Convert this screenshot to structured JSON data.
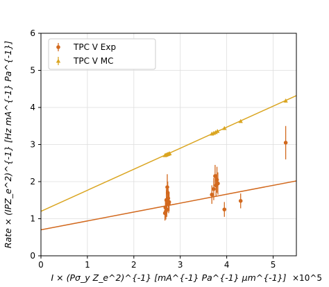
{
  "colors": {
    "exp": "#d2691e",
    "mc": "#daa520",
    "grid": "#dddddd",
    "axis": "#000000"
  },
  "chart_data": {
    "type": "scatter",
    "xlabel": "I × (Pσ_y Z_e^2)^{-1} [mA^{-1} Pa^{-1} μm^{-1}]",
    "ylabel": "Rate × (IPZ_e^2)^{-1} [Hz mA^{-1} Pa^{-1}]",
    "x_multiplier": "×10^5",
    "xlim": [
      0,
      550000
    ],
    "ylim": [
      0,
      6
    ],
    "x_ticks": [
      0,
      100000,
      200000,
      300000,
      400000,
      500000
    ],
    "x_tick_labels": [
      "0",
      "1",
      "2",
      "3",
      "4",
      "5"
    ],
    "y_ticks": [
      0,
      1,
      2,
      3,
      4,
      5,
      6
    ],
    "y_tick_labels": [
      "0",
      "1",
      "2",
      "3",
      "4",
      "5",
      "6"
    ],
    "grid": true,
    "legend_position": "top-left",
    "series": [
      {
        "name": "TPC V Exp",
        "marker": "circle",
        "color": "#d2691e",
        "points": [
          {
            "x": 267000,
            "y": 1.15,
            "err": 0.2
          },
          {
            "x": 268000,
            "y": 1.3,
            "err": 0.25
          },
          {
            "x": 269000,
            "y": 1.2,
            "err": 0.22
          },
          {
            "x": 270000,
            "y": 1.5,
            "err": 0.3
          },
          {
            "x": 271000,
            "y": 1.25,
            "err": 0.2
          },
          {
            "x": 272000,
            "y": 1.85,
            "err": 0.35
          },
          {
            "x": 273000,
            "y": 1.7,
            "err": 0.3
          },
          {
            "x": 274000,
            "y": 1.55,
            "err": 0.25
          },
          {
            "x": 275000,
            "y": 1.4,
            "err": 0.25
          },
          {
            "x": 276000,
            "y": 1.45,
            "err": 0.25
          },
          {
            "x": 368000,
            "y": 1.65,
            "err": 0.25
          },
          {
            "x": 372000,
            "y": 1.8,
            "err": 0.3
          },
          {
            "x": 375000,
            "y": 2.15,
            "err": 0.3
          },
          {
            "x": 377000,
            "y": 1.9,
            "err": 0.3
          },
          {
            "x": 379000,
            "y": 2.05,
            "err": 0.35
          },
          {
            "x": 381000,
            "y": 1.95,
            "err": 0.3
          },
          {
            "x": 395000,
            "y": 1.25,
            "err": 0.2
          },
          {
            "x": 430000,
            "y": 1.48,
            "err": 0.2
          },
          {
            "x": 527000,
            "y": 3.05,
            "err": 0.45
          }
        ],
        "fit": {
          "intercept": 0.7,
          "slope": 2.4e-06
        }
      },
      {
        "name": "TPC V MC",
        "marker": "triangle",
        "color": "#daa520",
        "points": [
          {
            "x": 267000,
            "y": 2.71,
            "err": 0.03
          },
          {
            "x": 269000,
            "y": 2.72,
            "err": 0.03
          },
          {
            "x": 271000,
            "y": 2.73,
            "err": 0.03
          },
          {
            "x": 273000,
            "y": 2.74,
            "err": 0.03
          },
          {
            "x": 275000,
            "y": 2.75,
            "err": 0.03
          },
          {
            "x": 277000,
            "y": 2.76,
            "err": 0.03
          },
          {
            "x": 368000,
            "y": 3.29,
            "err": 0.03
          },
          {
            "x": 372000,
            "y": 3.31,
            "err": 0.03
          },
          {
            "x": 376000,
            "y": 3.33,
            "err": 0.03
          },
          {
            "x": 380000,
            "y": 3.36,
            "err": 0.03
          },
          {
            "x": 395000,
            "y": 3.44,
            "err": 0.03
          },
          {
            "x": 430000,
            "y": 3.63,
            "err": 0.04
          },
          {
            "x": 527000,
            "y": 4.18,
            "err": 0.05
          }
        ],
        "fit": {
          "intercept": 1.2,
          "slope": 5.67e-06
        }
      }
    ]
  }
}
